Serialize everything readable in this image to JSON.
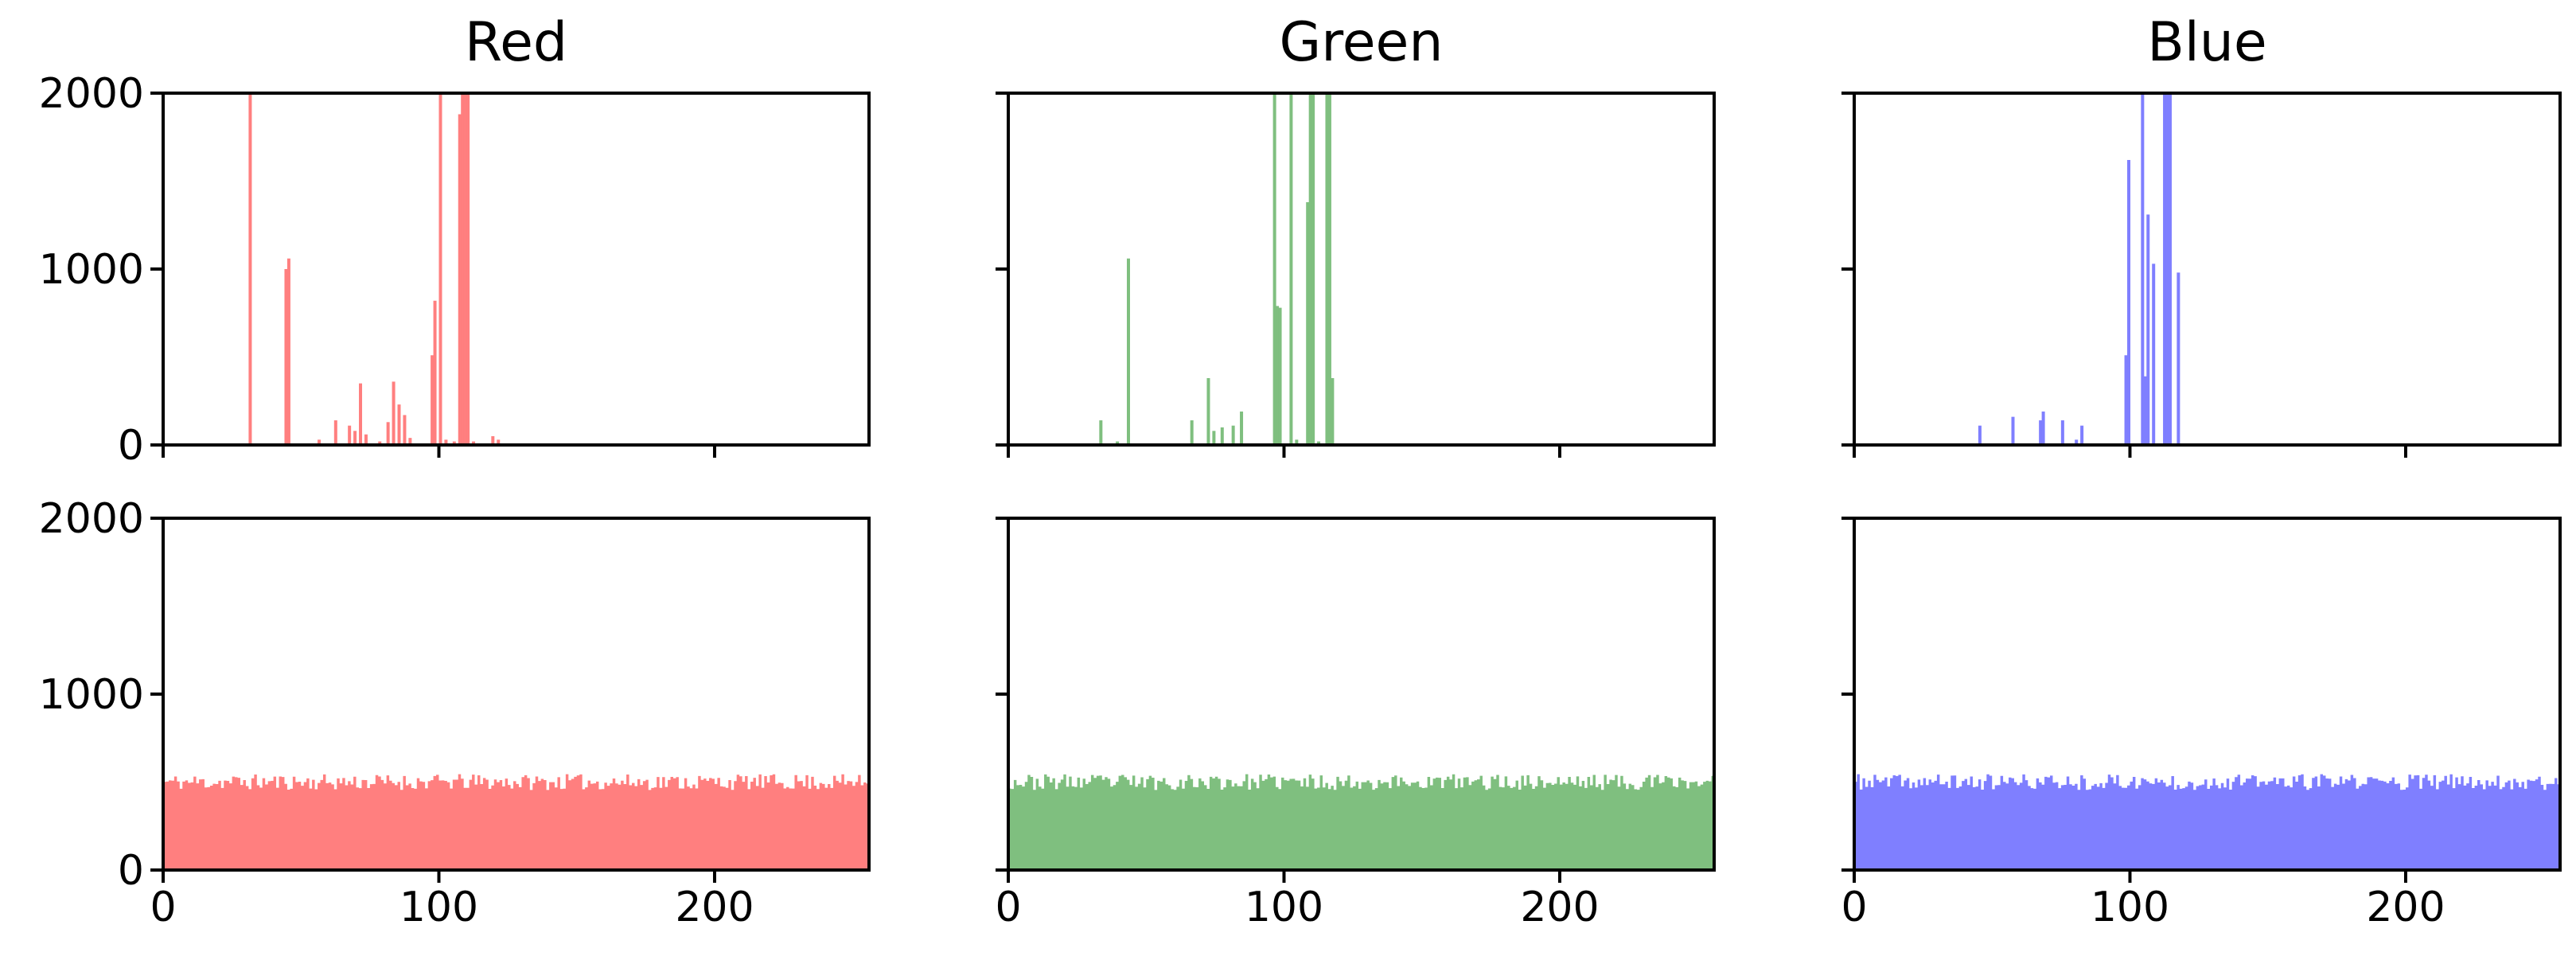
{
  "chart_data": {
    "type": "bar",
    "layout_grid": {
      "rows": 2,
      "cols": 3
    },
    "columns": [
      {
        "title": "Red",
        "color": "#ff7f7f"
      },
      {
        "title": "Green",
        "color": "#7fbf7f"
      },
      {
        "title": "Blue",
        "color": "#7f7fff"
      }
    ],
    "xlim": [
      0,
      256
    ],
    "ylim": [
      0,
      2000
    ],
    "xticks": [
      0,
      100,
      200
    ],
    "xtick_labels": [
      "0",
      "100",
      "200"
    ],
    "yticks": [
      0,
      1000,
      2000
    ],
    "ytick_labels": [
      "0",
      "1000",
      "2000"
    ],
    "bin_width": 1,
    "grid": false,
    "panels": [
      {
        "row": 0,
        "col": 0,
        "channel": "Red",
        "distribution": "sparse",
        "bins": [
          {
            "x": 31,
            "y": 2000
          },
          {
            "x": 44,
            "y": 1000
          },
          {
            "x": 45,
            "y": 1060
          },
          {
            "x": 56,
            "y": 30
          },
          {
            "x": 62,
            "y": 140
          },
          {
            "x": 67,
            "y": 110
          },
          {
            "x": 69,
            "y": 80
          },
          {
            "x": 71,
            "y": 350
          },
          {
            "x": 73,
            "y": 60
          },
          {
            "x": 78,
            "y": 20
          },
          {
            "x": 81,
            "y": 130
          },
          {
            "x": 83,
            "y": 360
          },
          {
            "x": 85,
            "y": 230
          },
          {
            "x": 87,
            "y": 170
          },
          {
            "x": 89,
            "y": 40
          },
          {
            "x": 97,
            "y": 510
          },
          {
            "x": 98,
            "y": 820
          },
          {
            "x": 100,
            "y": 2000
          },
          {
            "x": 102,
            "y": 30
          },
          {
            "x": 105,
            "y": 20
          },
          {
            "x": 107,
            "y": 1880
          },
          {
            "x": 108,
            "y": 2000
          },
          {
            "x": 109,
            "y": 2000
          },
          {
            "x": 110,
            "y": 2000
          },
          {
            "x": 112,
            "y": 20
          },
          {
            "x": 119,
            "y": 50
          },
          {
            "x": 121,
            "y": 30
          }
        ]
      },
      {
        "row": 0,
        "col": 1,
        "channel": "Green",
        "distribution": "sparse",
        "bins": [
          {
            "x": 33,
            "y": 140
          },
          {
            "x": 39,
            "y": 20
          },
          {
            "x": 43,
            "y": 1060
          },
          {
            "x": 66,
            "y": 140
          },
          {
            "x": 72,
            "y": 380
          },
          {
            "x": 74,
            "y": 80
          },
          {
            "x": 77,
            "y": 100
          },
          {
            "x": 81,
            "y": 110
          },
          {
            "x": 84,
            "y": 190
          },
          {
            "x": 96,
            "y": 2000
          },
          {
            "x": 97,
            "y": 790
          },
          {
            "x": 98,
            "y": 780
          },
          {
            "x": 102,
            "y": 2000
          },
          {
            "x": 104,
            "y": 30
          },
          {
            "x": 108,
            "y": 1380
          },
          {
            "x": 109,
            "y": 2000
          },
          {
            "x": 110,
            "y": 2000
          },
          {
            "x": 112,
            "y": 20
          },
          {
            "x": 115,
            "y": 2000
          },
          {
            "x": 116,
            "y": 2000
          },
          {
            "x": 117,
            "y": 380
          }
        ]
      },
      {
        "row": 0,
        "col": 2,
        "channel": "Blue",
        "distribution": "sparse",
        "bins": [
          {
            "x": 45,
            "y": 110
          },
          {
            "x": 57,
            "y": 160
          },
          {
            "x": 67,
            "y": 140
          },
          {
            "x": 68,
            "y": 190
          },
          {
            "x": 75,
            "y": 140
          },
          {
            "x": 80,
            "y": 30
          },
          {
            "x": 82,
            "y": 110
          },
          {
            "x": 98,
            "y": 510
          },
          {
            "x": 99,
            "y": 1620
          },
          {
            "x": 104,
            "y": 2000
          },
          {
            "x": 105,
            "y": 390
          },
          {
            "x": 106,
            "y": 1310
          },
          {
            "x": 108,
            "y": 1030
          },
          {
            "x": 112,
            "y": 2000
          },
          {
            "x": 113,
            "y": 2000
          },
          {
            "x": 114,
            "y": 2000
          },
          {
            "x": 117,
            "y": 980
          }
        ]
      },
      {
        "row": 1,
        "col": 0,
        "channel": "Red",
        "distribution": "uniform",
        "level": 500,
        "jitter": 45,
        "seed": 11
      },
      {
        "row": 1,
        "col": 1,
        "channel": "Green",
        "distribution": "uniform",
        "level": 500,
        "jitter": 45,
        "seed": 23
      },
      {
        "row": 1,
        "col": 2,
        "channel": "Blue",
        "distribution": "uniform",
        "level": 500,
        "jitter": 45,
        "seed": 37
      }
    ]
  }
}
